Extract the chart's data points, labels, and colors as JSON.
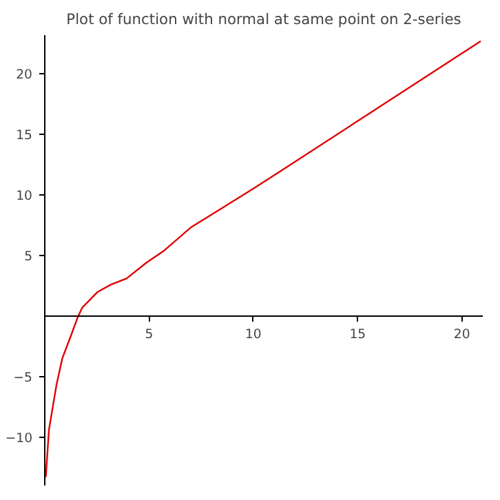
{
  "chart_data": {
    "type": "line",
    "title": "Plot of function with normal at same point on 2-series",
    "x": [
      0.05,
      0.2,
      0.56,
      0.84,
      1.26,
      1.58,
      1.8,
      2.54,
      3.18,
      3.92,
      4.87,
      5.72,
      6.99,
      8.48,
      10.07,
      11.24,
      15.0,
      20.9
    ],
    "series": [
      {
        "color": "#e00000",
        "values": [
          -13.3,
          -9.4,
          -5.7,
          -3.5,
          -1.6,
          -0.1,
          0.7,
          2.0,
          2.6,
          3.1,
          4.4,
          5.4,
          7.3,
          8.9,
          10.6,
          11.9,
          16.1,
          22.7
        ]
      }
    ],
    "xlim": [
      0,
      21
    ],
    "ylim": [
      -14,
      23.2
    ],
    "xticks": [
      5,
      10,
      15,
      20
    ],
    "yticks": [
      -10,
      -5,
      5,
      10,
      15,
      20
    ],
    "grid": false,
    "marker": "none",
    "line_style": "solid"
  }
}
